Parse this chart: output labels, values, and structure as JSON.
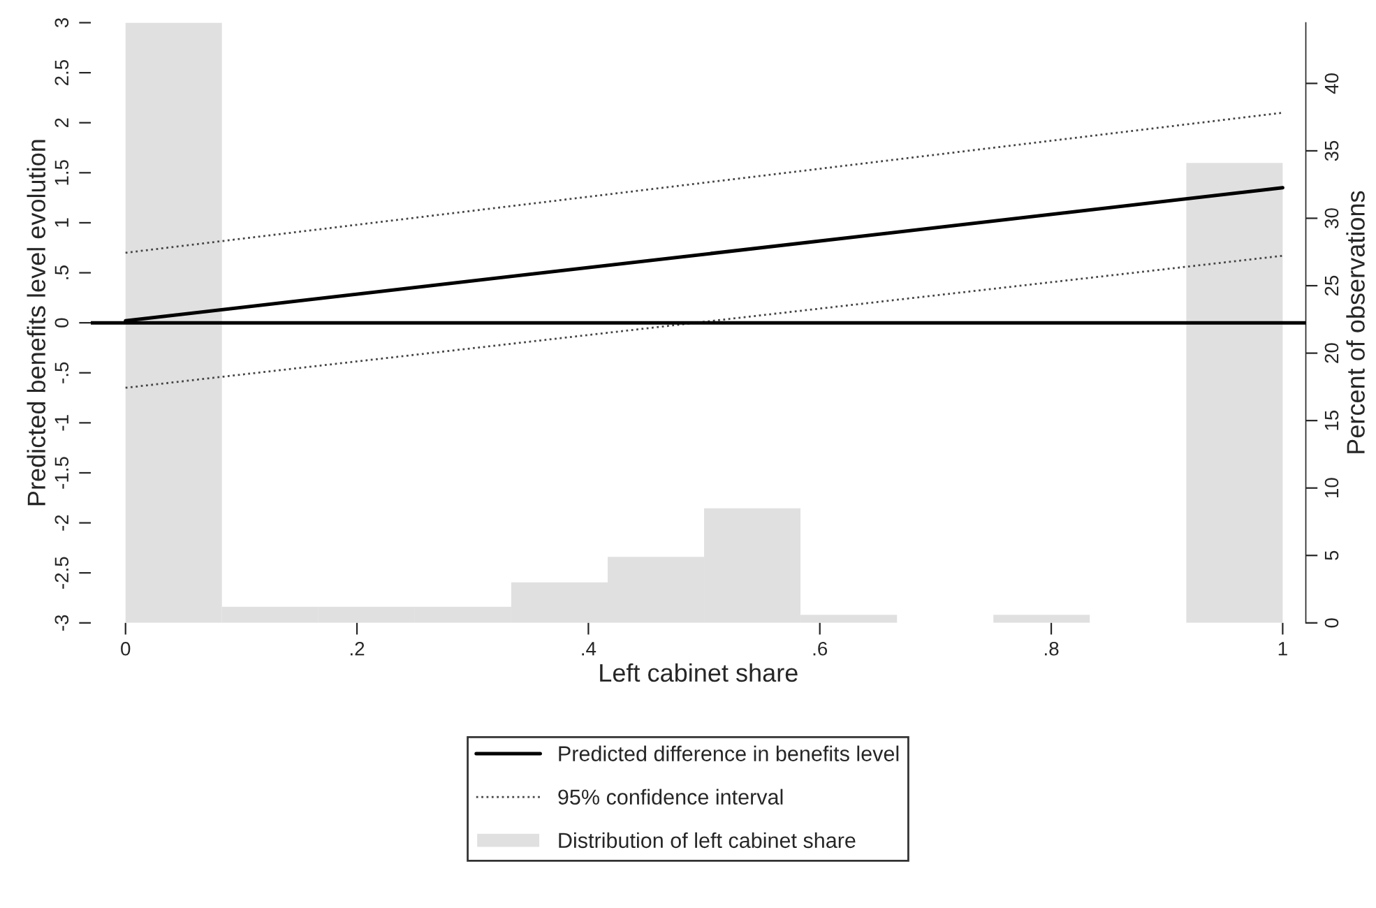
{
  "chart_data": {
    "type": "line",
    "xlabel": "Left cabinet share",
    "ylabel": "Predicted benefits level evolution",
    "y2label": "Percent of observations",
    "xlim": [
      -0.03,
      1.02
    ],
    "xticks": [
      0,
      {
        "value": 0.2,
        "label": ".2"
      },
      {
        "value": 0.4,
        "label": ".4"
      },
      {
        "value": 0.6,
        "label": ".6"
      },
      {
        "value": 0.8,
        "label": ".8"
      },
      1
    ],
    "ylim": [
      -3,
      3
    ],
    "yticks": [
      {
        "value": -3,
        "label": "-3"
      },
      {
        "value": -2.5,
        "label": "-2.5"
      },
      {
        "value": -2,
        "label": "-2"
      },
      {
        "value": -1.5,
        "label": "-1.5"
      },
      {
        "value": -1,
        "label": "-1"
      },
      {
        "value": -0.5,
        "label": "-.5"
      },
      0,
      {
        "value": 0.5,
        "label": ".5"
      },
      1,
      1.5,
      2,
      2.5,
      3
    ],
    "y2lim": [
      0,
      44.5
    ],
    "y2ticks": [
      0,
      5,
      10,
      15,
      20,
      25,
      30,
      35,
      40
    ],
    "series": [
      {
        "name": "Predicted difference in benefits level",
        "color": "#000000",
        "line_style": "solid",
        "values": [
          0.02,
          1.35
        ]
      },
      {
        "name": "95% confidence interval",
        "color": "#444444",
        "line_style": "dotted",
        "values": [
          0.7,
          2.1
        ]
      },
      {
        "color": "#444444",
        "line_style": "dotted",
        "values": [
          -0.65,
          0.67
        ]
      },
      {
        "type": "histogram",
        "axis": "y2",
        "name": "Distribution of left cabinet share",
        "color": "#e0e0e0",
        "bins": [
          0,
          0.0833,
          0.1667,
          0.25,
          0.3333,
          0.4167,
          0.5,
          0.5833,
          0.6667,
          0.75,
          0.8333,
          0.9167,
          1
        ],
        "values": [
          44.5,
          1.2,
          1.2,
          1.2,
          3.0,
          4.9,
          8.5,
          0.6,
          0,
          0.6,
          0,
          34.1
        ]
      }
    ],
    "ref_lines": [
      {
        "axis": "y",
        "value": 0,
        "color": "#000000",
        "line_style": "solid"
      }
    ],
    "x": [
      0,
      1
    ],
    "grid": false,
    "legend": "bottom"
  }
}
